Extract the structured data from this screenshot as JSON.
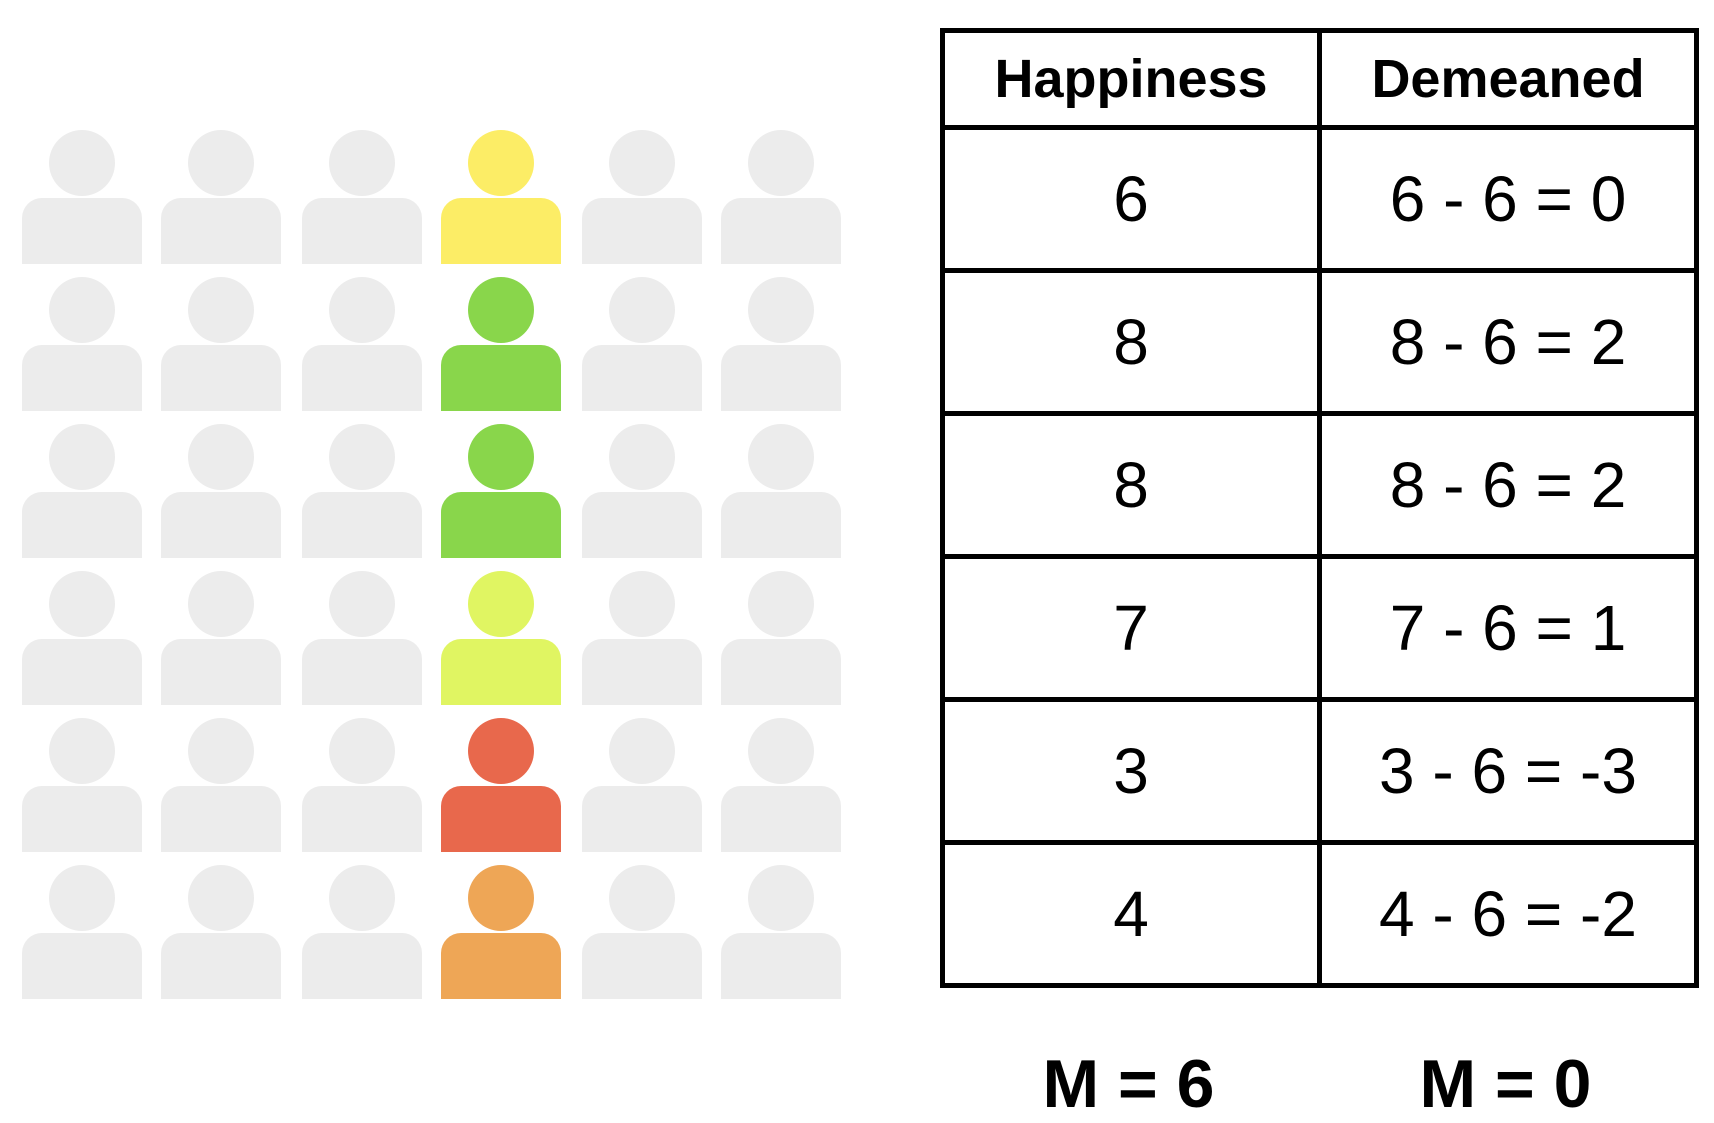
{
  "people_grid": {
    "columns": 6,
    "rows": 6,
    "highlight_column": 4,
    "inactive_color": "#ececec",
    "highlight_colors": [
      "#fced66",
      "#89d64b",
      "#89d64b",
      "#e0f562",
      "#e8684c",
      "#eea656"
    ]
  },
  "table": {
    "headers": [
      "Happiness",
      "Demeaned"
    ],
    "rows": [
      [
        "6",
        "6 - 6 =  0"
      ],
      [
        "8",
        "8 - 6 =  2"
      ],
      [
        "8",
        "8 - 6 =  2"
      ],
      [
        "7",
        "7 - 6 =  1"
      ],
      [
        "3",
        "3 - 6 =  -3"
      ],
      [
        "4",
        "4 - 6 =  -2"
      ]
    ]
  },
  "means": {
    "happiness": "M = 6",
    "demeaned": "M = 0"
  }
}
